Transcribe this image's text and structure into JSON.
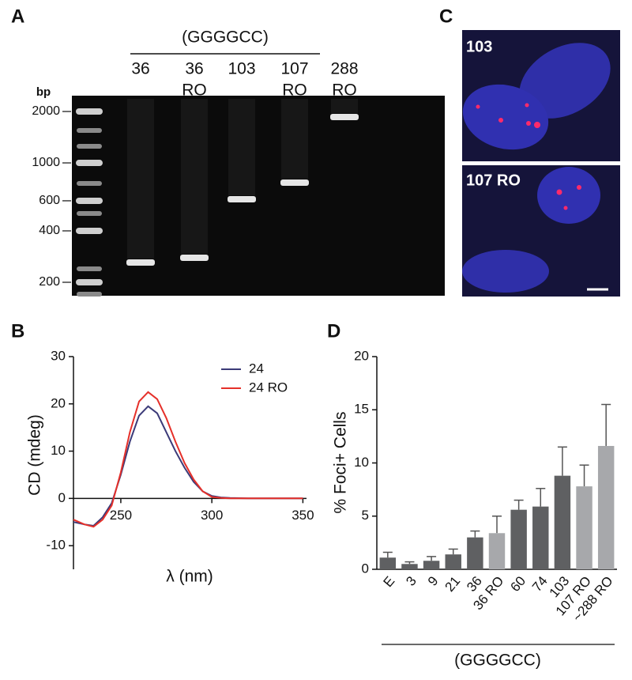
{
  "figure": {
    "panel_a": {
      "label": "A",
      "header": "(GGGGCC)",
      "unit": "bp",
      "lanes": [
        [
          "36"
        ],
        [
          "36",
          "RO"
        ],
        [
          "103"
        ],
        [
          "107",
          "RO"
        ],
        [
          "288",
          "RO"
        ]
      ],
      "ladder": [
        2000,
        1000,
        600,
        400,
        200
      ]
    },
    "panel_c": {
      "label": "C",
      "images": [
        "103",
        "107 RO"
      ]
    }
  },
  "chart_data": [
    {
      "type": "line",
      "label": "B",
      "xlabel": "λ (nm)",
      "ylabel": "CD (mdeg)",
      "x": [
        224,
        230,
        235,
        240,
        245,
        250,
        255,
        260,
        265,
        270,
        275,
        280,
        285,
        290,
        295,
        300,
        305,
        310,
        320,
        330,
        340,
        350
      ],
      "series": [
        {
          "name": "24",
          "color": "#3b3a78",
          "values": [
            -5,
            -5.5,
            -5.8,
            -4,
            -1,
            5,
            12,
            17.5,
            19.5,
            18,
            14,
            10,
            6.5,
            3.5,
            1.5,
            0.5,
            0.2,
            0.1,
            0,
            0,
            0,
            0
          ]
        },
        {
          "name": "24 RO",
          "color": "#e5302a",
          "values": [
            -4.5,
            -5.5,
            -6,
            -4.5,
            -1.5,
            5.5,
            14,
            20.5,
            22.5,
            21,
            17,
            12,
            7.5,
            4,
            1.5,
            0.3,
            0.1,
            0,
            0,
            0,
            0,
            0
          ]
        }
      ],
      "xlim": [
        224,
        352
      ],
      "ylim": [
        -15,
        30
      ],
      "xticks": [
        250,
        300,
        350
      ],
      "yticks": [
        -10,
        0,
        10,
        20,
        30
      ],
      "legend": "upper right"
    },
    {
      "type": "bar",
      "label": "D",
      "xlabel": "(GGGGCC)",
      "ylabel": "% Foci+ Cells",
      "categories": [
        "E",
        "3",
        "9",
        "21",
        "36",
        "36 RO",
        "60",
        "74",
        "103",
        "107 RO",
        "~288 RO"
      ],
      "values": [
        1.1,
        0.5,
        0.8,
        1.4,
        3.0,
        3.4,
        5.6,
        5.9,
        8.8,
        7.8,
        11.6
      ],
      "errors": [
        0.5,
        0.2,
        0.4,
        0.5,
        0.6,
        1.6,
        0.9,
        1.7,
        2.7,
        2.0,
        3.9
      ],
      "colors": [
        "#5f6062",
        "#5f6062",
        "#5f6062",
        "#5f6062",
        "#5f6062",
        "#a7a8ab",
        "#5f6062",
        "#5f6062",
        "#5f6062",
        "#a7a8ab",
        "#a7a8ab"
      ],
      "ylim": [
        0,
        20
      ],
      "yticks": [
        0,
        5,
        10,
        15,
        20
      ]
    }
  ]
}
